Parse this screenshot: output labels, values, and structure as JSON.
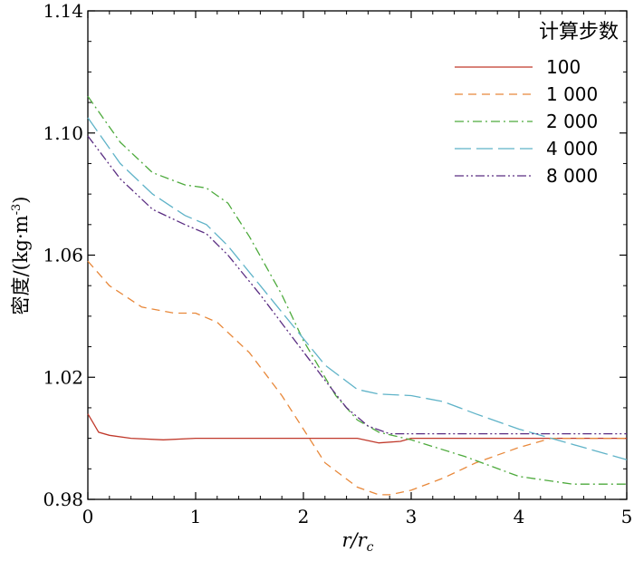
{
  "chart_data": {
    "type": "line",
    "xlabel": "r/r",
    "xlabel_sub": "c",
    "ylabel": "密度/(kg·m",
    "ylabel_sup": "-3",
    "ylabel_close": ")",
    "xlim": [
      0,
      5
    ],
    "ylim": [
      0.98,
      1.14
    ],
    "xticks": [
      0,
      1,
      2,
      3,
      4,
      5
    ],
    "xtick_labels": [
      "0",
      "1",
      "2",
      "3",
      "4",
      "5"
    ],
    "yticks": [
      0.98,
      1.02,
      1.06,
      1.1,
      1.14
    ],
    "ytick_labels": [
      "0.98",
      "1.02",
      "1.06",
      "1.10",
      "1.14"
    ],
    "grid": false,
    "legend_title": "计算步数",
    "legend_position": "top-right",
    "series": [
      {
        "name": "100",
        "color": "#c0392b",
        "dash": "solid",
        "x": [
          0,
          0.05,
          0.1,
          0.2,
          0.4,
          0.7,
          1.0,
          1.5,
          2.0,
          2.5,
          2.7,
          2.9,
          3.0,
          3.5,
          4.0,
          4.5,
          5.0
        ],
        "y": [
          1.008,
          1.005,
          1.002,
          1.001,
          1.0,
          0.9995,
          1.0,
          1.0,
          1.0,
          1.0,
          0.9985,
          0.999,
          1.0,
          1.0,
          1.0,
          1.0,
          1.0
        ]
      },
      {
        "name": "1 000",
        "color": "#e8883a",
        "dash": "dashed",
        "x": [
          0,
          0.2,
          0.5,
          0.8,
          1.0,
          1.2,
          1.5,
          1.8,
          2.0,
          2.2,
          2.5,
          2.7,
          2.8,
          3.0,
          3.3,
          3.6,
          4.0,
          4.3,
          5.0
        ],
        "y": [
          1.058,
          1.05,
          1.043,
          1.041,
          1.041,
          1.038,
          1.028,
          1.014,
          1.003,
          0.992,
          0.984,
          0.9815,
          0.9815,
          0.983,
          0.987,
          0.992,
          0.997,
          1.0,
          1.0
        ]
      },
      {
        "name": "2 000",
        "color": "#4daa3c",
        "dash": "dashdot",
        "x": [
          0,
          0.3,
          0.6,
          0.9,
          1.1,
          1.3,
          1.5,
          1.8,
          2.0,
          2.3,
          2.5,
          2.7,
          3.0,
          3.5,
          4.0,
          4.5,
          5.0
        ],
        "y": [
          1.112,
          1.097,
          1.087,
          1.083,
          1.082,
          1.077,
          1.066,
          1.047,
          1.032,
          1.014,
          1.006,
          1.002,
          0.9995,
          0.994,
          0.9875,
          0.985,
          0.985
        ]
      },
      {
        "name": "4 000",
        "color": "#5fb3c8",
        "dash": "longdash",
        "x": [
          0,
          0.3,
          0.6,
          0.9,
          1.1,
          1.3,
          1.6,
          1.9,
          2.2,
          2.5,
          2.7,
          3.0,
          3.3,
          3.6,
          4.0,
          4.5,
          5.0
        ],
        "y": [
          1.105,
          1.09,
          1.08,
          1.073,
          1.07,
          1.063,
          1.05,
          1.037,
          1.024,
          1.016,
          1.0145,
          1.014,
          1.012,
          1.008,
          1.003,
          0.998,
          0.993
        ]
      },
      {
        "name": "8 000",
        "color": "#5a2d82",
        "dash": "dashdotdot",
        "x": [
          0,
          0.3,
          0.6,
          0.9,
          1.1,
          1.3,
          1.6,
          1.9,
          2.2,
          2.4,
          2.6,
          2.8,
          3.0,
          3.5,
          4.0,
          4.5,
          5.0
        ],
        "y": [
          1.099,
          1.085,
          1.075,
          1.07,
          1.067,
          1.06,
          1.047,
          1.033,
          1.019,
          1.01,
          1.004,
          1.0015,
          1.0015,
          1.0015,
          1.0015,
          1.0015,
          1.0015
        ]
      }
    ]
  }
}
